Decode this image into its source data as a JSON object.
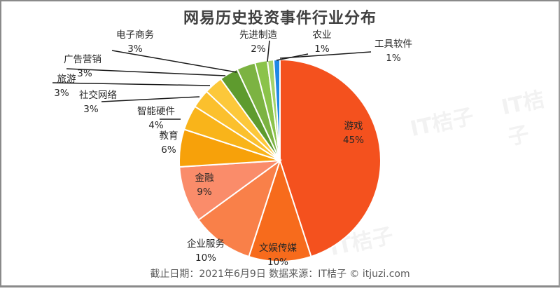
{
  "title": "网易历史投资事件行业分布",
  "footer": "截止日期：2021年6月9日    数据来源：IT桔子 © itjuzi.com",
  "watermark": "IT桔子",
  "chart_data": {
    "type": "pie",
    "title": "网易历史投资事件行业分布",
    "categories": [
      "游戏",
      "文娱传媒",
      "企业服务",
      "金融",
      "教育",
      "智能硬件",
      "社交网络",
      "旅游",
      "广告营销",
      "电子商务",
      "先进制造",
      "农业",
      "工具软件"
    ],
    "values": [
      45,
      10,
      10,
      9,
      6,
      4,
      3,
      3,
      3,
      3,
      2,
      1,
      1
    ],
    "unit": "%",
    "colors": [
      "#f4511e",
      "#f76b1c",
      "#f98049",
      "#fa8c6a",
      "#f7a10a",
      "#f9b41a",
      "#fbc02d",
      "#fcc83a",
      "#5e9b2e",
      "#7cb342",
      "#8bc34a",
      "#a5d36b",
      "#1e88e5"
    ],
    "start_angle": "12 o'clock, clockwise",
    "legend": "none (data labels)",
    "source": "IT桔子 © itjuzi.com",
    "date": "2021年6月9日"
  },
  "labels": [
    {
      "name": "游戏",
      "pct": "45%"
    },
    {
      "name": "文娱传媒",
      "pct": "10%"
    },
    {
      "name": "企业服务",
      "pct": "10%"
    },
    {
      "name": "金融",
      "pct": "9%"
    },
    {
      "name": "教育",
      "pct": "6%"
    },
    {
      "name": "智能硬件",
      "pct": "4%"
    },
    {
      "name": "社交网络",
      "pct": "3%"
    },
    {
      "name": "旅游",
      "pct": "3%"
    },
    {
      "name": "广告营销",
      "pct": "3%"
    },
    {
      "name": "电子商务",
      "pct": "3%"
    },
    {
      "name": "先进制造",
      "pct": "2%"
    },
    {
      "name": "农业",
      "pct": "1%"
    },
    {
      "name": "工具软件",
      "pct": "1%"
    }
  ]
}
